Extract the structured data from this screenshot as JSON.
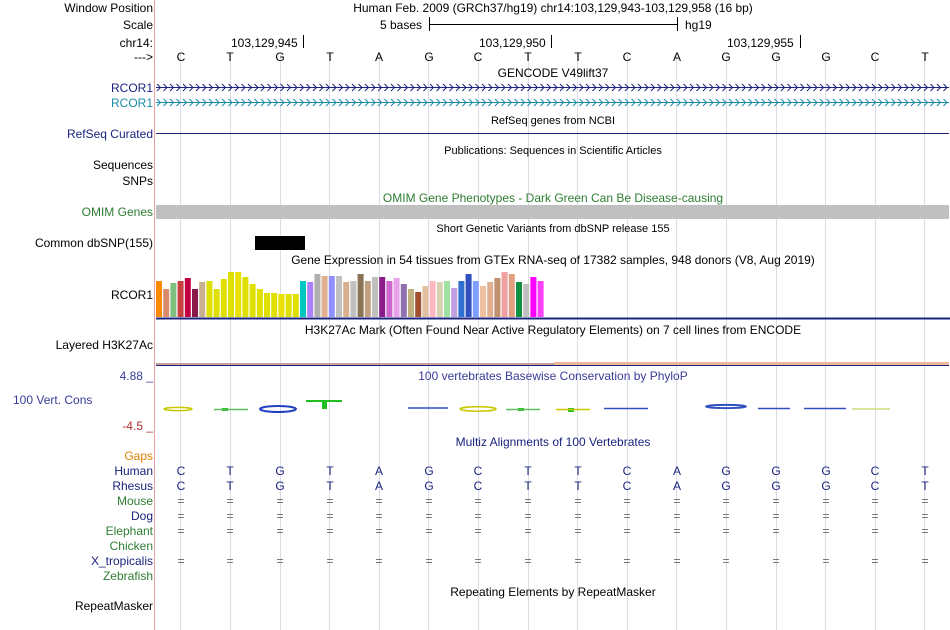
{
  "header": {
    "window_position_label": "Window Position",
    "assembly_position": "Human Feb. 2009 (GRCh37/hg19)   chr14:103,129,943-103,129,958 (16 bp)",
    "scale_label": "Scale",
    "scale_text": "5 bases",
    "scale_db": "hg19",
    "chrom_label": "chr14:",
    "strand_label": "--->",
    "ticks": [
      "103,129,945",
      "103,129,950",
      "103,129,955"
    ]
  },
  "sequence": [
    "C",
    "T",
    "G",
    "T",
    "A",
    "G",
    "C",
    "T",
    "T",
    "C",
    "A",
    "G",
    "G",
    "G",
    "C",
    "T"
  ],
  "tracks": {
    "gencode_title": "GENCODE V49lift37",
    "gencode_rows": [
      {
        "label": "RCOR1",
        "color": "#1a237e"
      },
      {
        "label": "RCOR1",
        "color": "#1a8ca8"
      }
    ],
    "refseq_title": "RefSeq genes from NCBI",
    "refseq_label": "RefSeq Curated",
    "pubs_title": "Publications: Sequences in Scientific Articles",
    "sequences_label": "Sequences",
    "snps_label": "SNPs",
    "omim_title": "OMIM Gene Phenotypes - Dark Green Can Be Disease-causing",
    "omim_label": "OMIM Genes",
    "dbsnp_title": "Short Genetic Variants from dbSNP release 155",
    "dbsnp_label": "Common dbSNP(155)",
    "gtex_title": "Gene Expression in 54 tissues from GTEx RNA-seq of 17382 samples, 948 donors (V8, Aug 2019)",
    "gtex_label": "RCOR1",
    "gtex_values": [
      0.72,
      0.55,
      0.68,
      0.72,
      0.78,
      0.55,
      0.7,
      0.72,
      0.55,
      0.75,
      0.9,
      0.9,
      0.8,
      0.65,
      0.55,
      0.48,
      0.48,
      0.45,
      0.45,
      0.45,
      0.72,
      0.7,
      0.85,
      0.82,
      0.82,
      0.82,
      0.7,
      0.72,
      0.86,
      0.72,
      0.8,
      0.8,
      0.72,
      0.78,
      0.65,
      0.55,
      0.5,
      0.62,
      0.72,
      0.7,
      0.72,
      0.58,
      0.72,
      0.85,
      0.72,
      0.62,
      0.7,
      0.78,
      0.9,
      0.86,
      0.7,
      0.65,
      0.8,
      0.72
    ],
    "gtex_colors": [
      "#ff8a00",
      "#d98a68",
      "#7fbf7f",
      "#c84040",
      "#c00040",
      "#8b1a4a",
      "#c8b090",
      "#e0e000",
      "#e0e000",
      "#e0e000",
      "#e0e000",
      "#e8e000",
      "#e0e000",
      "#e0e000",
      "#e0e000",
      "#e0e000",
      "#e0e000",
      "#e8e000",
      "#e0e000",
      "#e0e000",
      "#00c8c0",
      "#aa80ff",
      "#b0b0b0",
      "#e0b090",
      "#9090ff",
      "#c0c0c0",
      "#d8b090",
      "#c0c0c0",
      "#8b7355",
      "#c0a080",
      "#c0c0c0",
      "#8b1a8b",
      "#cc66cc",
      "#e8a0e8",
      "#9070b0",
      "#c0b080",
      "#a05030",
      "#e0c0a0",
      "#ffb6c1",
      "#d8d0b0",
      "#a0e0a0",
      "#c0a0e0",
      "#3070d0",
      "#3050c0",
      "#80a0ff",
      "#f0c0a0",
      "#e0b090",
      "#c09070",
      "#f0a0a0",
      "#e0a080",
      "#109040",
      "#c0c0c0",
      "#ff00ff",
      "#ff40ff"
    ],
    "h3k27ac_title": "H3K27Ac Mark (Often Found Near Active Regulatory Elements) on 7 cell lines from ENCODE",
    "h3k27ac_label": "Layered H3K27Ac",
    "phylop_title": "100 vertebrates Basewise Conservation by PhyloP",
    "phylop_label": "100 Vert. Cons",
    "phylop_max": "4.88 _",
    "phylop_min": "-4.5 _",
    "multiz_title": "Multiz Alignments of 100 Vertebrates",
    "gaps_label": "Gaps",
    "species": [
      {
        "label": "Human",
        "color": "#1a237e",
        "row": [
          "C",
          "T",
          "G",
          "T",
          "A",
          "G",
          "C",
          "T",
          "T",
          "C",
          "A",
          "G",
          "G",
          "G",
          "C",
          "T"
        ]
      },
      {
        "label": "Rhesus",
        "color": "#1a237e",
        "row": [
          "C",
          "T",
          "G",
          "T",
          "A",
          "G",
          "C",
          "T",
          "T",
          "C",
          "A",
          "G",
          "G",
          "G",
          "C",
          "T"
        ]
      },
      {
        "label": "Mouse",
        "color": "#2e7d32",
        "row": [
          "=",
          "=",
          "=",
          "=",
          "=",
          "=",
          "=",
          "=",
          "=",
          "=",
          "=",
          "=",
          "=",
          "=",
          "=",
          "="
        ]
      },
      {
        "label": "Dog",
        "color": "#1a237e",
        "row": [
          "=",
          "=",
          "=",
          "=",
          "=",
          "=",
          "=",
          "=",
          "=",
          "=",
          "=",
          "=",
          "=",
          "=",
          "=",
          "="
        ]
      },
      {
        "label": "Elephant",
        "color": "#2e7d32",
        "row": [
          "=",
          "=",
          "=",
          "=",
          "=",
          "=",
          "=",
          "=",
          "=",
          "=",
          "=",
          "=",
          "=",
          "=",
          "=",
          "="
        ]
      },
      {
        "label": "Chicken",
        "color": "#2e7d32",
        "row": [
          "",
          "",
          "",
          "",
          "",
          "",
          "",
          "",
          "",
          "",
          "",
          "",
          "",
          "",
          "",
          ""
        ]
      },
      {
        "label": "X_tropicalis",
        "color": "#1a237e",
        "row": [
          "=",
          "=",
          "=",
          "=",
          "=",
          "=",
          "=",
          "=",
          "=",
          "=",
          "=",
          "=",
          "=",
          "=",
          "=",
          "="
        ]
      },
      {
        "label": "Zebrafish",
        "color": "#2e7d32",
        "row": [
          "",
          "",
          "",
          "",
          "",
          "",
          "",
          "",
          "",
          "",
          "",
          "",
          "",
          "",
          "",
          ""
        ]
      }
    ],
    "repeatmasker_title": "Repeating Elements by RepeatMasker",
    "repeatmasker_label": "RepeatMasker"
  },
  "colors": {
    "navy": "#1a237e",
    "teal": "#1a8ca8",
    "omim_green": "#2e7d32",
    "gaps_orange": "#e08000",
    "phylop_blue": "#3a3a9a"
  }
}
